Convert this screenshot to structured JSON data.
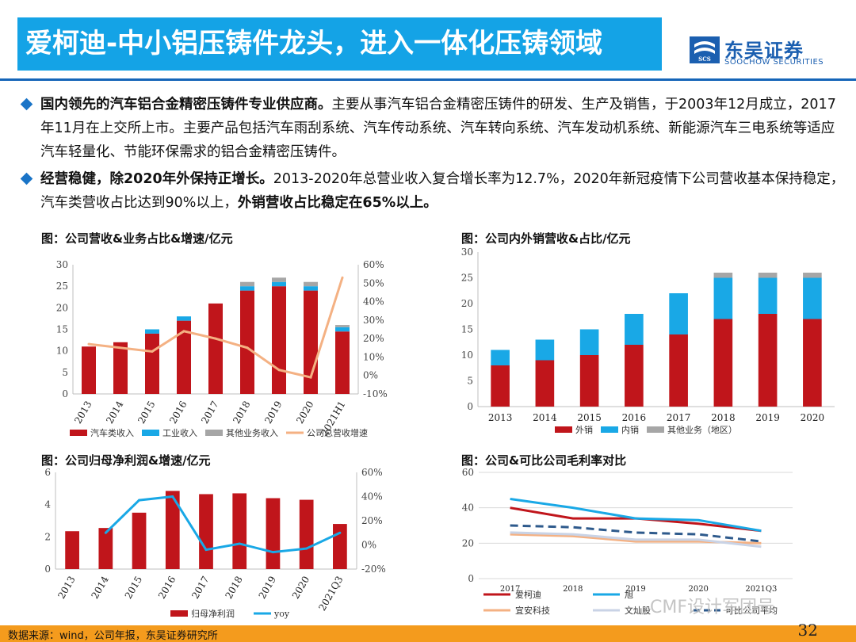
{
  "header": {
    "title": "爱柯迪-中小铝压铸件龙头，进入一体化压铸领域",
    "logo_cn": "东吴证券",
    "logo_en": "SOOCHOW SECURITIES",
    "logo_mark": "SCS",
    "brand_color": "#14a3e6"
  },
  "bullets": [
    {
      "bold": "国内领先的汽车铝合金精密压铸件专业供应商。",
      "text": "主要从事汽车铝合金精密压铸件的研发、生产及销售，于2003年12月成立，2017年11月在上交所上市。主要产品包括汽车雨刮系统、汽车传动系统、汽车转向系统、汽车发动机系统、新能源汽车三电系统等适应汽车轻量化、节能环保需求的铝合金精密压铸件。"
    },
    {
      "bold": "经营稳健，除2020年外保持正增长。",
      "text": "2013-2020年总营业收入复合增长率为12.7%，2020年新冠疫情下公司营收基本保持稳定，汽车类营收占比达到90%以上，",
      "bold2": "外销营收占比稳定在65%以上。"
    }
  ],
  "chart_titles": {
    "c1": "图：公司营收&业务占比&增速/亿元",
    "c2": "图：公司内外销营收&占比/亿元",
    "c3": "图：公司归母净利润&增速/亿元",
    "c4": "图：公司&可比公司毛利率对比"
  },
  "chart_data": [
    {
      "id": "c1",
      "type": "bar",
      "stacked": true,
      "categories": [
        "2013",
        "2014",
        "2015",
        "2016",
        "2017",
        "2018",
        "2019",
        "2020",
        "2021H1"
      ],
      "series": [
        {
          "name": "汽车类收入",
          "color": "#c0151b",
          "values": [
            11,
            12,
            14,
            17,
            21,
            24,
            25,
            24,
            14.5
          ]
        },
        {
          "name": "工业收入",
          "color": "#19a8e6",
          "values": [
            0,
            0,
            1,
            1,
            0,
            1,
            1,
            1,
            1
          ]
        },
        {
          "name": "其他业务收入",
          "color": "#a6a6a6",
          "values": [
            0,
            0,
            0,
            0,
            0,
            1,
            1,
            1,
            0.5
          ]
        }
      ],
      "line": {
        "name": "公司总营收增速",
        "color": "#f4b183",
        "values": [
          17,
          null,
          13,
          24,
          20,
          15,
          3,
          -1,
          53
        ]
      },
      "ylim": [
        0,
        30
      ],
      "yticks": [
        "0",
        "5",
        "10",
        "15",
        "20",
        "25",
        "30"
      ],
      "y2lim": [
        -10,
        60
      ],
      "y2ticks": [
        "-10%",
        "0%",
        "10%",
        "20%",
        "30%",
        "40%",
        "50%",
        "60%"
      ]
    },
    {
      "id": "c2",
      "type": "bar",
      "stacked": true,
      "categories": [
        "2013",
        "2014",
        "2015",
        "2016",
        "2017",
        "2018",
        "2019",
        "2020"
      ],
      "series": [
        {
          "name": "外销",
          "color": "#c0151b",
          "values": [
            8,
            9,
            10,
            12,
            14,
            17,
            18,
            17
          ]
        },
        {
          "name": "内销",
          "color": "#19a8e6",
          "values": [
            3,
            4,
            5,
            6,
            8,
            8,
            7,
            8
          ]
        },
        {
          "name": "其他业务（地区）",
          "color": "#a6a6a6",
          "values": [
            0,
            0,
            0,
            0,
            0,
            1,
            1,
            1
          ]
        }
      ],
      "ylim": [
        0,
        30
      ],
      "yticks": [
        "0",
        "5",
        "10",
        "15",
        "20",
        "25",
        "30"
      ]
    },
    {
      "id": "c3",
      "type": "bar",
      "categories": [
        "2013",
        "2014",
        "2015",
        "2016",
        "2017",
        "2018",
        "2019",
        "2020",
        "2021Q3"
      ],
      "series": [
        {
          "name": "归母净利润",
          "color": "#c0151b",
          "values": [
            2.35,
            2.55,
            3.5,
            4.85,
            4.65,
            4.7,
            4.4,
            4.3,
            2.8
          ]
        }
      ],
      "line": {
        "name": "yoy",
        "color": "#19a8e6",
        "values": [
          null,
          10,
          37,
          40,
          -4,
          1,
          -6,
          -3,
          10
        ]
      },
      "ylim": [
        0,
        6
      ],
      "yticks": [
        "0",
        "2",
        "4",
        "6"
      ],
      "y2lim": [
        -20,
        60
      ],
      "y2ticks": [
        "-20%",
        "0%",
        "20%",
        "40%",
        "60%"
      ]
    },
    {
      "id": "c4",
      "type": "line",
      "x": [
        "2017",
        "2018",
        "2019",
        "2020",
        "2021Q3"
      ],
      "series": [
        {
          "name": "爱柯迪",
          "color": "#c0151b",
          "dash": false,
          "values": [
            40,
            34,
            34,
            31,
            27
          ]
        },
        {
          "name": "旭升股份",
          "color": "#19a8e6",
          "dash": false,
          "values": [
            45,
            40,
            34,
            33,
            27
          ]
        },
        {
          "name": "宜安科技",
          "color": "#f4b183",
          "dash": false,
          "values": [
            25,
            24,
            21,
            21,
            20
          ]
        },
        {
          "name": "文灿股份",
          "color": "#c9d3e6",
          "dash": false,
          "values": [
            26,
            25,
            22,
            22,
            18
          ]
        },
        {
          "name": "可比公司平均",
          "color": "#2e5a8c",
          "dash": true,
          "values": [
            30,
            29,
            26,
            25,
            21
          ]
        }
      ],
      "legend_visible": [
        "爱柯迪",
        "旭",
        "宜安科技",
        "文灿股",
        "可比公司平均"
      ],
      "ylim": [
        0,
        60
      ],
      "yticks": [
        "0",
        "20",
        "40",
        "60"
      ]
    }
  ],
  "footer": {
    "source": "数据来源：wind，公司年报，东吴证券研究所",
    "page": "32",
    "watermark": "CMF设计军团号"
  }
}
